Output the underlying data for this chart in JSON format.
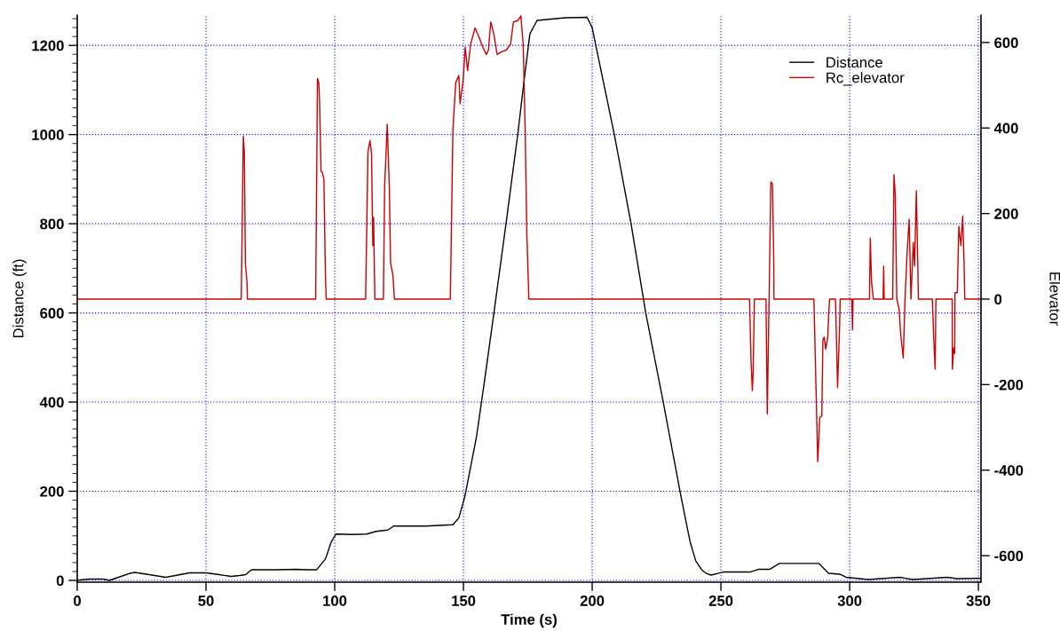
{
  "chart_data": {
    "type": "line",
    "xlabel": "Time (s)",
    "ylabel": "Distance (ft)",
    "y2label": "Elevator",
    "xlim": [
      0,
      351
    ],
    "xticks": [
      0,
      50,
      100,
      150,
      200,
      250,
      300,
      350
    ],
    "ylim": [
      -4,
      1268
    ],
    "yticks": [
      0,
      200,
      400,
      600,
      800,
      1000,
      1200
    ],
    "y2lim": [
      -662,
      664
    ],
    "y2ticks": [
      -600,
      -400,
      -200,
      0,
      200,
      400,
      600
    ],
    "grid": true,
    "legend": "top right",
    "series": [
      {
        "name": "Distance",
        "color": "#000000",
        "x": [
          0,
          1,
          5,
          10.2,
          12.5,
          16.5,
          20.6,
          22.3,
          28,
          34.4,
          39,
          43.6,
          49.9,
          54,
          59.7,
          63,
          65.4,
          67.7,
          77,
          85,
          89.5,
          93,
          96.4,
          98.7,
          100.5,
          106.8,
          112.5,
          116,
          120.6,
          122.9,
          135.5,
          145.9,
          148.2,
          150.5,
          155,
          158,
          162,
          166.6,
          171.1,
          173.4,
          175.8,
          178.6,
          189.6,
          198,
          200,
          201.4,
          208.6,
          215.1,
          220.8,
          227.6,
          234.1,
          236.5,
          238.1,
          240.2,
          242.5,
          244.5,
          246.2,
          251.2,
          261.6,
          264.7,
          269,
          272.7,
          288.1,
          291.8,
          296.1,
          298.6,
          307.2,
          319.5,
          324.4,
          337.9,
          341.7,
          351
        ],
        "values": [
          0,
          1,
          3,
          3,
          0,
          8,
          16,
          18,
          13,
          7,
          12,
          17,
          17,
          14,
          9,
          11,
          13,
          24,
          24,
          25,
          24,
          24,
          48,
          87,
          104,
          103,
          104,
          110,
          113,
          122,
          122,
          125,
          140,
          187,
          320,
          440,
          607,
          803,
          1001,
          1114,
          1226,
          1256,
          1262,
          1263,
          1240,
          1200,
          1000,
          800,
          600,
          400,
          200,
          130,
          85,
          44,
          24,
          15,
          12,
          19,
          19,
          25,
          25,
          38,
          38,
          16,
          14,
          7,
          2,
          7,
          2,
          7,
          4,
          5
        ]
      },
      {
        "name": "Rc_elevator",
        "color": "#cc0000",
        "axis": "y2",
        "x": [
          0,
          63.7,
          64.5,
          64.9,
          65.3,
          65.9,
          66.1,
          92.6,
          93.3,
          93.8,
          94.1,
          94.7,
          95.2,
          95.8,
          96.4,
          96.7,
          112.0,
          112.9,
          113.7,
          114.3,
          114.8,
          115.1,
          115.4,
          115.6,
          118.9,
          119.4,
          120.4,
          121.2,
          121.7,
          122.6,
          123.2,
          144.9,
          145.9,
          147.0,
          148.2,
          148.7,
          149.9,
          150.7,
          151.6,
          152.8,
          154.5,
          156.2,
          157.3,
          158.9,
          159.7,
          160.6,
          161.7,
          163.1,
          164.8,
          166.6,
          168.3,
          169.4,
          171.1,
          172.3,
          173.2,
          174.0,
          174.6,
          175.2,
          175.4,
          261.1,
          261.7,
          262.2,
          262.5,
          263.0,
          267.5,
          268.0,
          268.9,
          269.4,
          270.0,
          270.5,
          270.6,
          286.1,
          286.3,
          286.9,
          287.6,
          288.4,
          289.2,
          289.6,
          290.1,
          290.7,
          291.5,
          291.8,
          292.2,
          294.5,
          295.3,
          296.1,
          296.3,
          300.8,
          301.1,
          301.3,
          307.7,
          308.0,
          308.5,
          309.2,
          313.0,
          313.2,
          313.4,
          316.7,
          317.2,
          317.7,
          318.3,
          319.2,
          319.8,
          320.8,
          321.5,
          322.3,
          323.1,
          323.8,
          324.7,
          325.2,
          325.9,
          326.7,
          332.1,
          332.7,
          333.2,
          333.5,
          339.8,
          339.9,
          340.4,
          340.8,
          340.9,
          341.8,
          342.4,
          343.2,
          343.9,
          344.4,
          344.7,
          351
        ],
        "values": [
          0,
          0,
          381,
          343,
          84,
          42,
          0,
          0,
          516,
          506,
          465,
          299,
          296,
          281,
          56,
          0,
          0,
          343,
          371,
          340,
          125,
          191,
          70,
          0,
          0,
          264,
          409,
          264,
          84,
          56,
          0,
          0,
          395,
          506,
          523,
          457,
          513,
          589,
          534,
          596,
          634,
          610,
          592,
          572,
          582,
          648,
          623,
          572,
          578,
          582,
          596,
          648,
          651,
          662,
          596,
          388,
          153,
          42,
          0,
          0,
          -145,
          -214,
          -172,
          0,
          0,
          -269,
          77,
          274,
          270,
          98,
          0,
          0,
          -48,
          -200,
          -380,
          -276,
          -273,
          -96,
          -89,
          -117,
          -89,
          -41,
          0,
          0,
          -207,
          -62,
          0,
          0,
          -72,
          0,
          0,
          143,
          39,
          0,
          0,
          77,
          0,
          0,
          291,
          243,
          0,
          -23,
          -82,
          -138,
          0,
          108,
          187,
          0,
          132,
          77,
          253,
          0,
          0,
          -98,
          -164,
          0,
          0,
          -164,
          -114,
          -127,
          15,
          15,
          170,
          125,
          194,
          89,
          0,
          0
        ]
      }
    ]
  }
}
